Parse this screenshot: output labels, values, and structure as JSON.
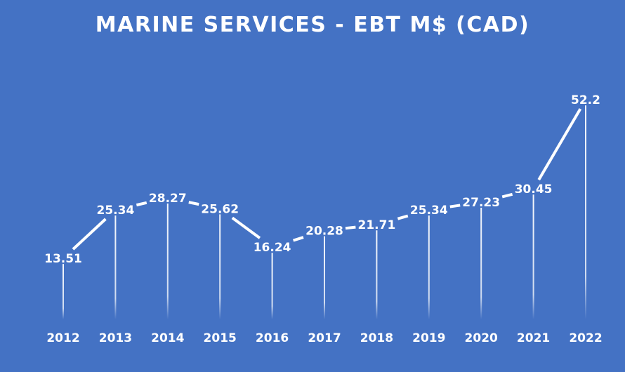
{
  "chart_data": {
    "type": "line",
    "title": "MARINE SERVICES - EBT M$ (CAD)",
    "xlabel": "",
    "ylabel": "",
    "categories": [
      "2012",
      "2013",
      "2014",
      "2015",
      "2016",
      "2017",
      "2018",
      "2019",
      "2020",
      "2021",
      "2022"
    ],
    "series": [
      {
        "values": [
          13.51,
          25.34,
          28.27,
          25.62,
          16.24,
          20.28,
          21.71,
          25.34,
          27.23,
          30.45,
          52.2
        ],
        "data_labels": [
          "13.51",
          "25.34",
          "28.27",
          "25.62",
          "16.24",
          "20.28",
          "21.71",
          "25.34",
          "27.23",
          "30.45",
          "52.2"
        ]
      }
    ],
    "ylim": [
      0,
      55
    ],
    "grid": false,
    "legend": "none",
    "y_axis_shown": false,
    "drop_lines": true,
    "colors": {
      "background": "#4472C4",
      "line": "#FFFFFF",
      "text": "#FFFFFF"
    }
  }
}
